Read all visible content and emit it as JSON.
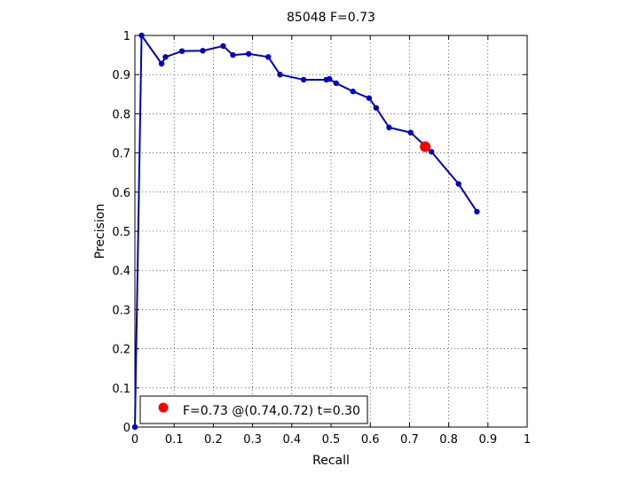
{
  "chart_data": {
    "type": "line",
    "title": "85048 F=0.73",
    "xlabel": "Recall",
    "ylabel": "Precision",
    "xlim": [
      0,
      1
    ],
    "ylim": [
      0,
      1
    ],
    "grid": true,
    "xticks": [
      0,
      0.1,
      0.2,
      0.3,
      0.4,
      0.5,
      0.6,
      0.7,
      0.8,
      0.9,
      1
    ],
    "yticks": [
      0,
      0.1,
      0.2,
      0.3,
      0.4,
      0.5,
      0.6,
      0.7,
      0.8,
      0.9,
      1
    ],
    "xtick_labels": [
      "0",
      "0.1",
      "0.2",
      "0.3",
      "0.4",
      "0.5",
      "0.6",
      "0.7",
      "0.8",
      "0.9",
      "1"
    ],
    "ytick_labels": [
      "0",
      "0.1",
      "0.2",
      "0.3",
      "0.4",
      "0.5",
      "0.6",
      "0.7",
      "0.8",
      "0.9",
      "1"
    ],
    "series": [
      {
        "color": "#0000cc",
        "points": [
          {
            "x": 0.0,
            "y": 0.0
          },
          {
            "x": 0.017,
            "y": 1.0
          },
          {
            "x": 0.068,
            "y": 0.928
          },
          {
            "x": 0.078,
            "y": 0.945
          },
          {
            "x": 0.12,
            "y": 0.96
          },
          {
            "x": 0.173,
            "y": 0.961
          },
          {
            "x": 0.225,
            "y": 0.973
          },
          {
            "x": 0.25,
            "y": 0.95
          },
          {
            "x": 0.29,
            "y": 0.953
          },
          {
            "x": 0.34,
            "y": 0.945
          },
          {
            "x": 0.37,
            "y": 0.9
          },
          {
            "x": 0.43,
            "y": 0.887
          },
          {
            "x": 0.488,
            "y": 0.887
          },
          {
            "x": 0.496,
            "y": 0.889
          },
          {
            "x": 0.513,
            "y": 0.878
          },
          {
            "x": 0.556,
            "y": 0.857
          },
          {
            "x": 0.597,
            "y": 0.84
          },
          {
            "x": 0.615,
            "y": 0.815
          },
          {
            "x": 0.648,
            "y": 0.765
          },
          {
            "x": 0.703,
            "y": 0.752
          },
          {
            "x": 0.756,
            "y": 0.703
          },
          {
            "x": 0.825,
            "y": 0.621
          },
          {
            "x": 0.872,
            "y": 0.55
          }
        ]
      }
    ],
    "best_point": {
      "x": 0.74,
      "y": 0.716,
      "color": "#ff0000"
    },
    "legend": {
      "placement": "bottom-left",
      "text": "F=0.73 @(0.74,0.72) t=0.30"
    }
  }
}
